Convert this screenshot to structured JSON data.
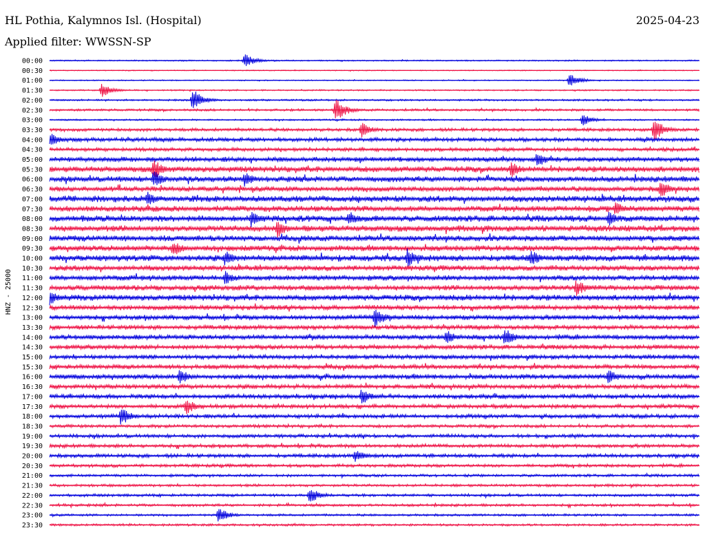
{
  "header": {
    "title": "HL Pothia, Kalymnos Isl. (Hospital)",
    "date": "2025-04-23",
    "filter": "Applied filter: WWSSN-SP"
  },
  "chart_data": {
    "type": "line",
    "ylabel": "HNZ - 25000",
    "series_colors": [
      "#0000dd",
      "#ee1144"
    ],
    "rows": [
      {
        "time": "00:00",
        "color": "#0000dd",
        "amp": 0.15
      },
      {
        "time": "00:30",
        "color": "#ee1144",
        "amp": 0.1
      },
      {
        "time": "01:00",
        "color": "#0000dd",
        "amp": 0.12
      },
      {
        "time": "01:30",
        "color": "#ee1144",
        "amp": 0.15
      },
      {
        "time": "02:00",
        "color": "#0000dd",
        "amp": 0.2
      },
      {
        "time": "02:30",
        "color": "#ee1144",
        "amp": 0.25
      },
      {
        "time": "03:00",
        "color": "#0000dd",
        "amp": 0.18
      },
      {
        "time": "03:30",
        "color": "#ee1144",
        "amp": 0.35
      },
      {
        "time": "04:00",
        "color": "#0000dd",
        "amp": 0.45
      },
      {
        "time": "04:30",
        "color": "#ee1144",
        "amp": 0.4
      },
      {
        "time": "05:00",
        "color": "#0000dd",
        "amp": 0.55
      },
      {
        "time": "05:30",
        "color": "#ee1144",
        "amp": 0.65
      },
      {
        "time": "06:00",
        "color": "#0000dd",
        "amp": 0.65
      },
      {
        "time": "06:30",
        "color": "#ee1144",
        "amp": 0.6
      },
      {
        "time": "07:00",
        "color": "#0000dd",
        "amp": 0.7
      },
      {
        "time": "07:30",
        "color": "#ee1144",
        "amp": 0.65
      },
      {
        "time": "08:00",
        "color": "#0000dd",
        "amp": 0.7
      },
      {
        "time": "08:30",
        "color": "#ee1144",
        "amp": 0.7
      },
      {
        "time": "09:00",
        "color": "#0000dd",
        "amp": 0.65
      },
      {
        "time": "09:30",
        "color": "#ee1144",
        "amp": 0.65
      },
      {
        "time": "10:00",
        "color": "#0000dd",
        "amp": 0.7
      },
      {
        "time": "10:30",
        "color": "#ee1144",
        "amp": 0.6
      },
      {
        "time": "11:00",
        "color": "#0000dd",
        "amp": 0.6
      },
      {
        "time": "11:30",
        "color": "#ee1144",
        "amp": 0.6
      },
      {
        "time": "12:00",
        "color": "#0000dd",
        "amp": 0.65
      },
      {
        "time": "12:30",
        "color": "#ee1144",
        "amp": 0.55
      },
      {
        "time": "13:00",
        "color": "#0000dd",
        "amp": 0.55
      },
      {
        "time": "13:30",
        "color": "#ee1144",
        "amp": 0.5
      },
      {
        "time": "14:00",
        "color": "#0000dd",
        "amp": 0.55
      },
      {
        "time": "14:30",
        "color": "#ee1144",
        "amp": 0.5
      },
      {
        "time": "15:00",
        "color": "#0000dd",
        "amp": 0.5
      },
      {
        "time": "15:30",
        "color": "#ee1144",
        "amp": 0.5
      },
      {
        "time": "16:00",
        "color": "#0000dd",
        "amp": 0.55
      },
      {
        "time": "16:30",
        "color": "#ee1144",
        "amp": 0.5
      },
      {
        "time": "17:00",
        "color": "#0000dd",
        "amp": 0.5
      },
      {
        "time": "17:30",
        "color": "#ee1144",
        "amp": 0.45
      },
      {
        "time": "18:00",
        "color": "#0000dd",
        "amp": 0.45
      },
      {
        "time": "18:30",
        "color": "#ee1144",
        "amp": 0.35
      },
      {
        "time": "19:00",
        "color": "#0000dd",
        "amp": 0.4
      },
      {
        "time": "19:30",
        "color": "#ee1144",
        "amp": 0.4
      },
      {
        "time": "20:00",
        "color": "#0000dd",
        "amp": 0.4
      },
      {
        "time": "20:30",
        "color": "#ee1144",
        "amp": 0.35
      },
      {
        "time": "21:00",
        "color": "#0000dd",
        "amp": 0.3
      },
      {
        "time": "21:30",
        "color": "#ee1144",
        "amp": 0.3
      },
      {
        "time": "22:00",
        "color": "#0000dd",
        "amp": 0.3
      },
      {
        "time": "22:30",
        "color": "#ee1144",
        "amp": 0.3
      },
      {
        "time": "23:00",
        "color": "#0000dd",
        "amp": 0.25
      },
      {
        "time": "23:30",
        "color": "#ee1144",
        "amp": 0.25
      }
    ],
    "events": [
      {
        "time": "00:00",
        "x": 0.3,
        "mag": 1.2
      },
      {
        "time": "01:00",
        "x": 0.8,
        "mag": 1.2
      },
      {
        "time": "01:30",
        "x": 0.08,
        "mag": 1.3
      },
      {
        "time": "02:00",
        "x": 0.22,
        "mag": 2.0
      },
      {
        "time": "02:30",
        "x": 0.44,
        "mag": 2.2
      },
      {
        "time": "03:00",
        "x": 0.82,
        "mag": 1.0
      },
      {
        "time": "03:30",
        "x": 0.93,
        "mag": 2.0
      },
      {
        "time": "03:30",
        "x": 0.48,
        "mag": 1.3
      },
      {
        "time": "04:00",
        "x": 0.0,
        "mag": 1.3
      },
      {
        "time": "05:00",
        "x": 0.75,
        "mag": 1.4
      },
      {
        "time": "05:30",
        "x": 0.16,
        "mag": 1.8
      },
      {
        "time": "05:30",
        "x": 0.71,
        "mag": 1.4
      },
      {
        "time": "06:00",
        "x": 0.16,
        "mag": 1.6
      },
      {
        "time": "06:00",
        "x": 0.3,
        "mag": 1.3
      },
      {
        "time": "06:30",
        "x": 0.94,
        "mag": 1.6
      },
      {
        "time": "07:00",
        "x": 0.15,
        "mag": 1.4
      },
      {
        "time": "07:30",
        "x": 0.87,
        "mag": 1.4
      },
      {
        "time": "08:00",
        "x": 0.31,
        "mag": 1.4
      },
      {
        "time": "08:00",
        "x": 0.46,
        "mag": 1.4
      },
      {
        "time": "08:00",
        "x": 0.86,
        "mag": 1.3
      },
      {
        "time": "08:30",
        "x": 0.35,
        "mag": 1.6
      },
      {
        "time": "09:30",
        "x": 0.19,
        "mag": 1.4
      },
      {
        "time": "10:00",
        "x": 0.55,
        "mag": 1.8
      },
      {
        "time": "10:00",
        "x": 0.74,
        "mag": 1.5
      },
      {
        "time": "10:00",
        "x": 0.27,
        "mag": 1.3
      },
      {
        "time": "11:00",
        "x": 0.27,
        "mag": 1.3
      },
      {
        "time": "11:30",
        "x": 0.81,
        "mag": 1.5
      },
      {
        "time": "12:00",
        "x": 0.0,
        "mag": 1.3
      },
      {
        "time": "13:00",
        "x": 0.5,
        "mag": 1.8
      },
      {
        "time": "14:00",
        "x": 0.7,
        "mag": 1.6
      },
      {
        "time": "14:00",
        "x": 0.61,
        "mag": 1.3
      },
      {
        "time": "16:00",
        "x": 0.2,
        "mag": 1.4
      },
      {
        "time": "16:00",
        "x": 0.86,
        "mag": 1.3
      },
      {
        "time": "17:00",
        "x": 0.48,
        "mag": 1.4
      },
      {
        "time": "17:30",
        "x": 0.21,
        "mag": 1.4
      },
      {
        "time": "18:00",
        "x": 0.11,
        "mag": 1.6
      },
      {
        "time": "20:00",
        "x": 0.47,
        "mag": 1.2
      },
      {
        "time": "22:00",
        "x": 0.4,
        "mag": 1.4
      },
      {
        "time": "23:00",
        "x": 0.26,
        "mag": 1.4
      }
    ]
  }
}
